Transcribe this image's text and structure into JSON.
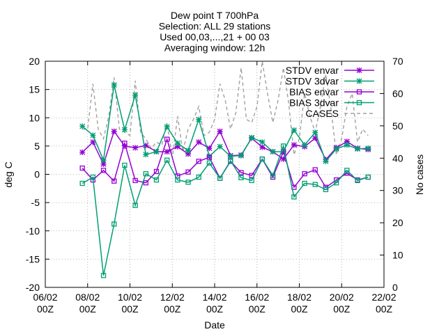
{
  "chart_data": {
    "type": "line",
    "title_lines": [
      "Dew point T 700hPa",
      "Selection: ALL      29 stations",
      "Used 00,03,...,21 + 00 03",
      "Averaging window: 12h"
    ],
    "xlabel": "Date",
    "ylabel": "deg C",
    "y2label": "No cases",
    "xlim": [
      0,
      32
    ],
    "ylim": [
      -20,
      20
    ],
    "y2lim": [
      0,
      70
    ],
    "x_ticks": [
      {
        "x": 0,
        "line1": "06/02",
        "line2": "00Z"
      },
      {
        "x": 4,
        "line1": "08/02",
        "line2": "00Z"
      },
      {
        "x": 8,
        "line1": "10/02",
        "line2": "00Z"
      },
      {
        "x": 12,
        "line1": "12/02",
        "line2": "00Z"
      },
      {
        "x": 16,
        "line1": "14/02",
        "line2": "00Z"
      },
      {
        "x": 20,
        "line1": "16/02",
        "line2": "00Z"
      },
      {
        "x": 24,
        "line1": "18/02",
        "line2": "00Z"
      },
      {
        "x": 28,
        "line1": "20/02",
        "line2": "00Z"
      },
      {
        "x": 32,
        "line1": "22/02",
        "line2": "00Z"
      }
    ],
    "y_ticks": [
      -20,
      -15,
      -10,
      -5,
      0,
      5,
      10,
      15,
      20
    ],
    "y2_ticks": [
      0,
      10,
      20,
      30,
      40,
      50,
      60,
      70
    ],
    "legend_position": "top-right",
    "series": [
      {
        "name": "STDV envar",
        "color": "#9400d3",
        "marker": "star",
        "x": [
          3.5,
          4.5,
          5.5,
          6.5,
          7.5,
          8.5,
          9.5,
          10.5,
          11.5,
          12.5,
          13.5,
          14.5,
          15.5,
          16.5,
          17.5,
          18.5,
          19.5,
          20.5,
          21.5,
          22.5,
          23.5,
          24.5,
          25.5,
          26.5,
          27.5,
          28.5,
          29.5,
          30.5
        ],
        "y": [
          3.9,
          5.7,
          1.8,
          7.6,
          5.0,
          4.7,
          5.1,
          4.0,
          4.0,
          4.9,
          3.6,
          5.7,
          4.6,
          7.6,
          3.3,
          3.4,
          6.4,
          4.8,
          4.0,
          2.7,
          5.2,
          4.9,
          6.4,
          2.6,
          4.7,
          5.8,
          4.6,
          4.4
        ]
      },
      {
        "name": "STDV 3dvar",
        "color": "#009e73",
        "marker": "star",
        "x": [
          3.5,
          4.5,
          5.5,
          6.5,
          7.5,
          8.5,
          9.5,
          10.5,
          11.5,
          12.5,
          13.5,
          14.5,
          15.5,
          16.5,
          17.5,
          18.5,
          19.5,
          20.5,
          21.5,
          22.5,
          23.5,
          24.5,
          25.5,
          26.5,
          27.5,
          28.5,
          29.5,
          30.5
        ],
        "y": [
          8.5,
          6.9,
          2.5,
          15.8,
          7.9,
          14.0,
          3.5,
          4.0,
          8.4,
          5.5,
          4.2,
          9.7,
          3.2,
          4.9,
          3.2,
          3.3,
          6.5,
          5.7,
          4.0,
          4.0,
          7.8,
          5.2,
          7.4,
          2.3,
          4.5,
          5.2,
          4.5,
          4.6
        ]
      },
      {
        "name": "BIAS envar",
        "color": "#9400d3",
        "marker": "square",
        "x": [
          3.5,
          4.5,
          5.5,
          6.5,
          7.5,
          8.5,
          9.5,
          10.5,
          11.5,
          12.5,
          13.5,
          14.5,
          15.5,
          16.5,
          17.5,
          18.5,
          19.5,
          20.5,
          21.5,
          22.5,
          23.5,
          24.5,
          25.5,
          26.5,
          27.5,
          28.5,
          29.5,
          30.5
        ],
        "y": [
          1.1,
          -1.0,
          0.7,
          -1.2,
          5.5,
          -1.1,
          -1.5,
          0.5,
          6.2,
          -0.3,
          0.4,
          2.3,
          3.0,
          -0.7,
          2.3,
          0.3,
          -0.2,
          2.7,
          -0.5,
          4.0,
          -2.3,
          0.1,
          0.8,
          -2.3,
          -1.0,
          0.2,
          -1.0,
          -0.5
        ]
      },
      {
        "name": "BIAS 3dvar",
        "color": "#009e73",
        "marker": "square",
        "x": [
          3.5,
          4.5,
          5.5,
          6.5,
          7.5,
          8.5,
          9.5,
          10.5,
          11.5,
          12.5,
          13.5,
          14.5,
          15.5,
          16.5,
          17.5,
          18.5,
          19.5,
          20.5,
          21.5,
          22.5,
          23.5,
          24.5,
          25.5,
          26.5,
          27.5,
          28.5,
          29.5,
          30.5
        ],
        "y": [
          -1.6,
          -0.5,
          -17.9,
          -8.8,
          1.6,
          -5.5,
          0.1,
          -1.0,
          2.5,
          -1.0,
          -1.4,
          -0.5,
          2.0,
          -0.7,
          2.4,
          -0.6,
          -1.1,
          2.7,
          -0.2,
          5.0,
          -4.0,
          -1.6,
          -1.8,
          -2.7,
          -1.5,
          0.7,
          -1.1,
          -0.5
        ]
      },
      {
        "name": "CASES",
        "color": "#a0a0a0",
        "dashed": true,
        "axis": "y2",
        "x": [
          3.5,
          4.0,
          4.5,
          5.0,
          5.5,
          6.0,
          6.5,
          7.0,
          7.5,
          8.0,
          8.5,
          9.0,
          9.5,
          10.0,
          10.5,
          11.0,
          11.5,
          12.0,
          12.5,
          13.0,
          13.5,
          14.0,
          14.5,
          15.0,
          15.5,
          16.0,
          16.5,
          17.0,
          17.5,
          18.0,
          18.5,
          19.0,
          19.5,
          20.0,
          20.5,
          21.0,
          21.5,
          22.0,
          22.5,
          23.0,
          23.5,
          24.0,
          24.5,
          25.0,
          25.5,
          26.0,
          26.5,
          27.0,
          27.5,
          28.0,
          28.5,
          29.0,
          29.5,
          30.0,
          30.5
        ],
        "y": [
          49,
          49,
          63,
          49,
          46,
          53,
          65,
          49,
          48,
          47,
          64,
          48,
          46,
          43,
          45,
          44,
          51,
          40,
          53,
          42,
          49,
          52,
          56,
          47,
          48,
          52,
          63,
          58,
          49,
          54,
          68,
          52,
          51,
          56,
          70,
          60,
          51,
          58,
          68,
          57,
          41,
          46,
          60,
          53,
          48,
          56,
          66,
          55,
          41,
          46,
          56,
          60,
          45,
          49,
          47
        ]
      }
    ]
  }
}
